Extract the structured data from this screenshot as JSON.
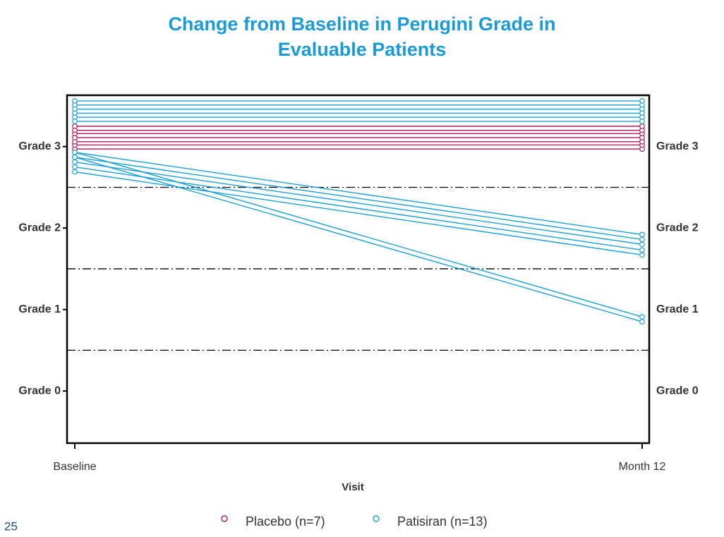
{
  "chart_data": {
    "type": "spaghetti",
    "title": "Change from Baseline in Perugini Grade in Evaluable Patients",
    "x_label": "Visit",
    "categories": [
      "Baseline",
      "Month 12"
    ],
    "ylim": [
      -0.64,
      3.63
    ],
    "yticks": [
      {
        "value": 0,
        "label": "Grade 0"
      },
      {
        "value": 1,
        "label": "Grade 1"
      },
      {
        "value": 2,
        "label": "Grade 2"
      },
      {
        "value": 3,
        "label": "Grade 3"
      }
    ],
    "reference_lines": [
      0.5,
      1.5,
      2.5
    ],
    "series": [
      {
        "name": "Placebo (n=7)",
        "color": "#b0185a",
        "values": [
          [
            2.97,
            2.97
          ],
          [
            3.02,
            3.02
          ],
          [
            3.06,
            3.06
          ],
          [
            3.11,
            3.11
          ],
          [
            3.16,
            3.16
          ],
          [
            3.2,
            3.2
          ],
          [
            3.25,
            3.25
          ]
        ]
      },
      {
        "name": "Patisiran (n=13)",
        "color": "#1aa0d8",
        "values": [
          [
            3.56,
            3.56
          ],
          [
            3.51,
            3.51
          ],
          [
            3.46,
            3.46
          ],
          [
            3.41,
            3.41
          ],
          [
            3.36,
            3.36
          ],
          [
            3.31,
            3.31
          ],
          [
            2.93,
            1.92
          ],
          [
            2.87,
            1.86
          ],
          [
            2.81,
            1.8
          ],
          [
            2.75,
            1.73
          ],
          [
            2.69,
            1.67
          ],
          [
            2.93,
            0.91
          ],
          [
            2.87,
            0.85
          ]
        ]
      }
    ],
    "page_number": "25"
  }
}
